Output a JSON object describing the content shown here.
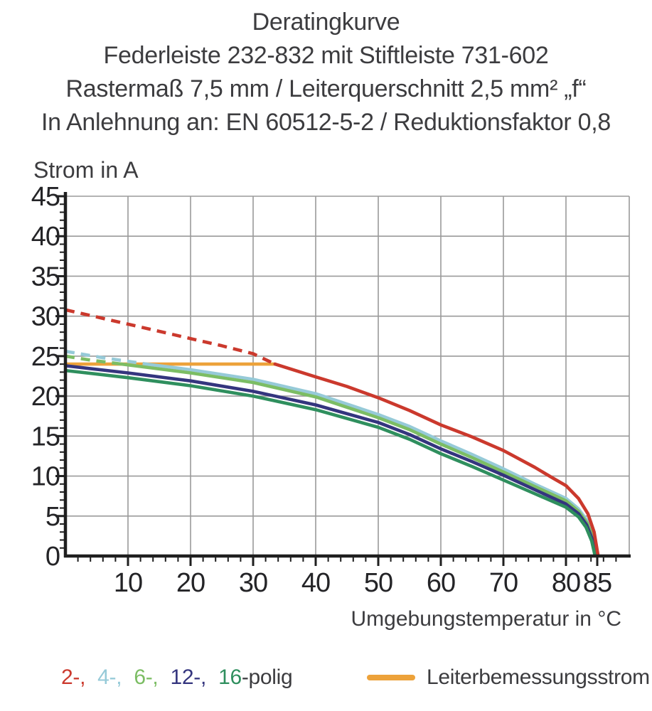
{
  "header": {
    "line1": "Deratingkurve",
    "line2": "Federleiste 232-832 mit Stiftleiste 731-602",
    "line3": "Rastermaß 7,5 mm / Leiterquerschnitt 2,5 mm² „f“",
    "line4": "In Anlehnung an: EN 60512-5-2 / Reduktionsfaktor 0,8"
  },
  "chart_data": {
    "type": "line",
    "title": "Deratingkurve",
    "xlabel": "Umgebungstemperatur in °C",
    "ylabel": "Strom in A",
    "xlim": [
      0,
      90
    ],
    "ylim": [
      0,
      45
    ],
    "x_major_ticks": [
      10,
      20,
      30,
      40,
      50,
      60,
      70,
      80,
      85
    ],
    "x_minor_step": 2,
    "x_minor_max": 88,
    "y_major_ticks": [
      0,
      5,
      10,
      15,
      20,
      25,
      30,
      35,
      40,
      45
    ],
    "y_minor_step": 1,
    "grid": true,
    "grid_color": "#9a9a9a",
    "axis_color": "#1f1f1f",
    "series": [
      {
        "name": "2-polig",
        "color": "#cb392d",
        "segments": [
          {
            "style": "dashed",
            "points": [
              [
                0,
                30.8
              ],
              [
                5,
                29.9
              ],
              [
                10,
                29.0
              ],
              [
                15,
                28.1
              ],
              [
                20,
                27.2
              ],
              [
                25,
                26.3
              ],
              [
                30,
                25.3
              ],
              [
                33.5,
                24.0
              ]
            ]
          },
          {
            "style": "solid",
            "points": [
              [
                33.5,
                24.0
              ],
              [
                40,
                22.4
              ],
              [
                45,
                21.2
              ],
              [
                50,
                19.8
              ],
              [
                55,
                18.2
              ],
              [
                60,
                16.4
              ],
              [
                65,
                14.9
              ],
              [
                70,
                13.2
              ],
              [
                75,
                11.1
              ],
              [
                78,
                9.7
              ],
              [
                80,
                8.8
              ],
              [
                82,
                7.2
              ],
              [
                83.5,
                5.3
              ],
              [
                84.5,
                3.0
              ],
              [
                85.1,
                0.2
              ]
            ]
          }
        ]
      },
      {
        "name": "4-polig",
        "color": "#96cad8",
        "segments": [
          {
            "style": "dashed",
            "points": [
              [
                0,
                25.6
              ],
              [
                6,
                24.8
              ],
              [
                13,
                24.0
              ]
            ]
          },
          {
            "style": "solid",
            "points": [
              [
                13,
                24.0
              ],
              [
                20,
                23.3
              ],
              [
                30,
                22.1
              ],
              [
                40,
                20.3
              ],
              [
                50,
                17.7
              ],
              [
                55,
                16.2
              ],
              [
                60,
                14.4
              ],
              [
                65,
                12.7
              ],
              [
                70,
                10.9
              ],
              [
                75,
                9.0
              ],
              [
                80,
                7.2
              ],
              [
                82,
                5.9
              ],
              [
                83.5,
                4.3
              ],
              [
                84.4,
                2.5
              ],
              [
                84.9,
                0.2
              ]
            ]
          }
        ]
      },
      {
        "name": "6-polig",
        "color": "#7cbd64",
        "segments": [
          {
            "style": "dashed",
            "points": [
              [
                0,
                25.0
              ],
              [
                4,
                24.5
              ],
              [
                9,
                24.0
              ]
            ]
          },
          {
            "style": "solid",
            "points": [
              [
                9,
                24.0
              ],
              [
                20,
                22.9
              ],
              [
                30,
                21.7
              ],
              [
                40,
                19.9
              ],
              [
                50,
                17.3
              ],
              [
                55,
                15.8
              ],
              [
                60,
                14.0
              ],
              [
                65,
                12.3
              ],
              [
                70,
                10.5
              ],
              [
                75,
                8.7
              ],
              [
                80,
                6.9
              ],
              [
                82,
                5.6
              ],
              [
                83.4,
                4.1
              ],
              [
                84.3,
                2.3
              ],
              [
                84.8,
                0.2
              ]
            ]
          }
        ]
      },
      {
        "name": "12-polig",
        "color": "#34357e",
        "segments": [
          {
            "style": "solid",
            "points": [
              [
                0,
                23.8
              ],
              [
                10,
                22.9
              ],
              [
                20,
                21.9
              ],
              [
                30,
                20.6
              ],
              [
                40,
                18.9
              ],
              [
                50,
                16.7
              ],
              [
                55,
                15.2
              ],
              [
                60,
                13.4
              ],
              [
                65,
                11.8
              ],
              [
                70,
                10.1
              ],
              [
                75,
                8.3
              ],
              [
                80,
                6.5
              ],
              [
                82,
                5.3
              ],
              [
                83.3,
                3.9
              ],
              [
                84.2,
                2.1
              ],
              [
                84.7,
                0.2
              ]
            ]
          }
        ]
      },
      {
        "name": "16-polig",
        "color": "#2f8f5e",
        "segments": [
          {
            "style": "solid",
            "points": [
              [
                0,
                23.2
              ],
              [
                10,
                22.3
              ],
              [
                20,
                21.3
              ],
              [
                30,
                20.0
              ],
              [
                40,
                18.3
              ],
              [
                50,
                16.1
              ],
              [
                55,
                14.6
              ],
              [
                60,
                12.8
              ],
              [
                65,
                11.2
              ],
              [
                70,
                9.5
              ],
              [
                75,
                7.8
              ],
              [
                80,
                6.1
              ],
              [
                82,
                4.9
              ],
              [
                83.2,
                3.6
              ],
              [
                84.1,
                1.9
              ],
              [
                84.6,
                0.2
              ]
            ]
          }
        ]
      },
      {
        "name": "Leiterbemessungsstrom",
        "color": "#eda23a",
        "segments": [
          {
            "style": "solid",
            "points": [
              [
                0,
                24.0
              ],
              [
                33.5,
                24.0
              ]
            ]
          }
        ]
      }
    ]
  },
  "legend": {
    "poles": [
      {
        "label": "2-,",
        "color": "#cb392d"
      },
      {
        "label": "4-,",
        "color": "#96cad8"
      },
      {
        "label": "6-,",
        "color": "#7cbd64"
      },
      {
        "label": "12-,",
        "color": "#34357e"
      },
      {
        "label": "16",
        "color": "#2f8f5e"
      }
    ],
    "suffix": "-polig",
    "rated": {
      "label": "Leiterbemessungsstrom",
      "color": "#eda23a"
    }
  }
}
